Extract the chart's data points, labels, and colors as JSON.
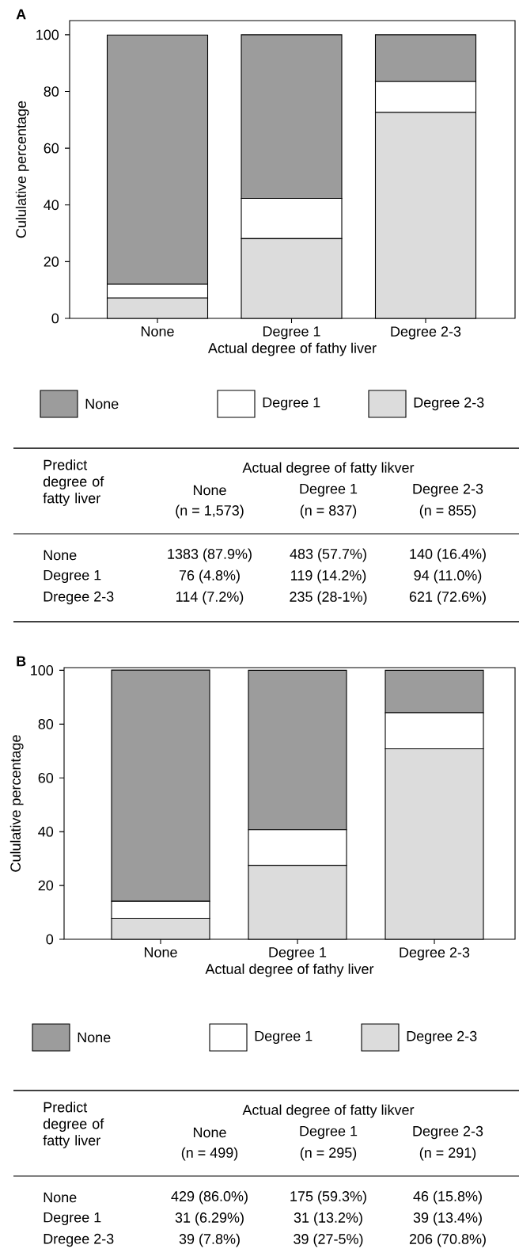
{
  "chart_data": [
    {
      "type": "bar",
      "title": "A",
      "stacked": true,
      "legend": "bottom",
      "categories": [
        "None",
        "Degree 1",
        "Degree 2-3"
      ],
      "xlabel": "Actual degree of fathy liver",
      "ylabel": "Cululative percentage",
      "ylim": [
        0,
        105
      ],
      "yticks": [
        0,
        20,
        40,
        60,
        80,
        100
      ],
      "series": [
        {
          "name": "Degree 2-3",
          "color": "#dcdcdc",
          "values": [
            7.2,
            28.1,
            72.6
          ]
        },
        {
          "name": "Degree 1",
          "color": "#ffffff",
          "values": [
            4.8,
            14.2,
            11.0
          ]
        },
        {
          "name": "None",
          "color": "#9c9c9c",
          "values": [
            87.9,
            57.7,
            16.4
          ]
        }
      ],
      "annotations": [
        "Predict degree of fatty liver",
        "Actual degree of fatty likver",
        "None",
        "Degree 1",
        "Degree 2-3",
        "(n = 1,573)",
        "(n = 837)",
        "(n = 855)",
        "None",
        "1383 (87.9%)",
        "483 (57.7%)",
        "140 (16.4%)",
        "Degree 1",
        "76 (4.8%)",
        "119 (14.2%)",
        "94 (11.0%)",
        "Dregee 2-3",
        "114 (7.2%)",
        "235 (28-1%)",
        "621 (72.6%)"
      ]
    },
    {
      "type": "bar",
      "title": "B",
      "stacked": true,
      "legend": "bottom",
      "categories": [
        "None",
        "Degree 1",
        "Degree 2-3"
      ],
      "xlabel": "Actual degree of fathy liver",
      "ylabel": "Cululative percentage",
      "ylim": [
        0,
        101
      ],
      "yticks": [
        0,
        20,
        40,
        60,
        80,
        100
      ],
      "series": [
        {
          "name": "Degree 2-3",
          "color": "#dcdcdc",
          "values": [
            7.8,
            27.5,
            70.8
          ]
        },
        {
          "name": "Degree 1",
          "color": "#ffffff",
          "values": [
            6.29,
            13.2,
            13.4
          ]
        },
        {
          "name": "None",
          "color": "#9c9c9c",
          "values": [
            86.0,
            59.3,
            15.8
          ]
        }
      ],
      "annotations": [
        "Predict degree of fatty liver",
        "Actual degree of fatty likver",
        "None",
        "Degree 1",
        "Degree 2-3",
        "(n = 499)",
        "(n = 295)",
        "(n = 291)",
        "None",
        "429  (86.0%)",
        "175  (59.3%)",
        "46  (15.8%)",
        "Degree 1",
        "31  (6.29%)",
        "31  (13.2%)",
        "39  (13.4%)",
        "Dregee 2-3",
        "39  (7.8%)",
        "39  (27-5%)",
        "206  (70.8%)"
      ]
    }
  ]
}
